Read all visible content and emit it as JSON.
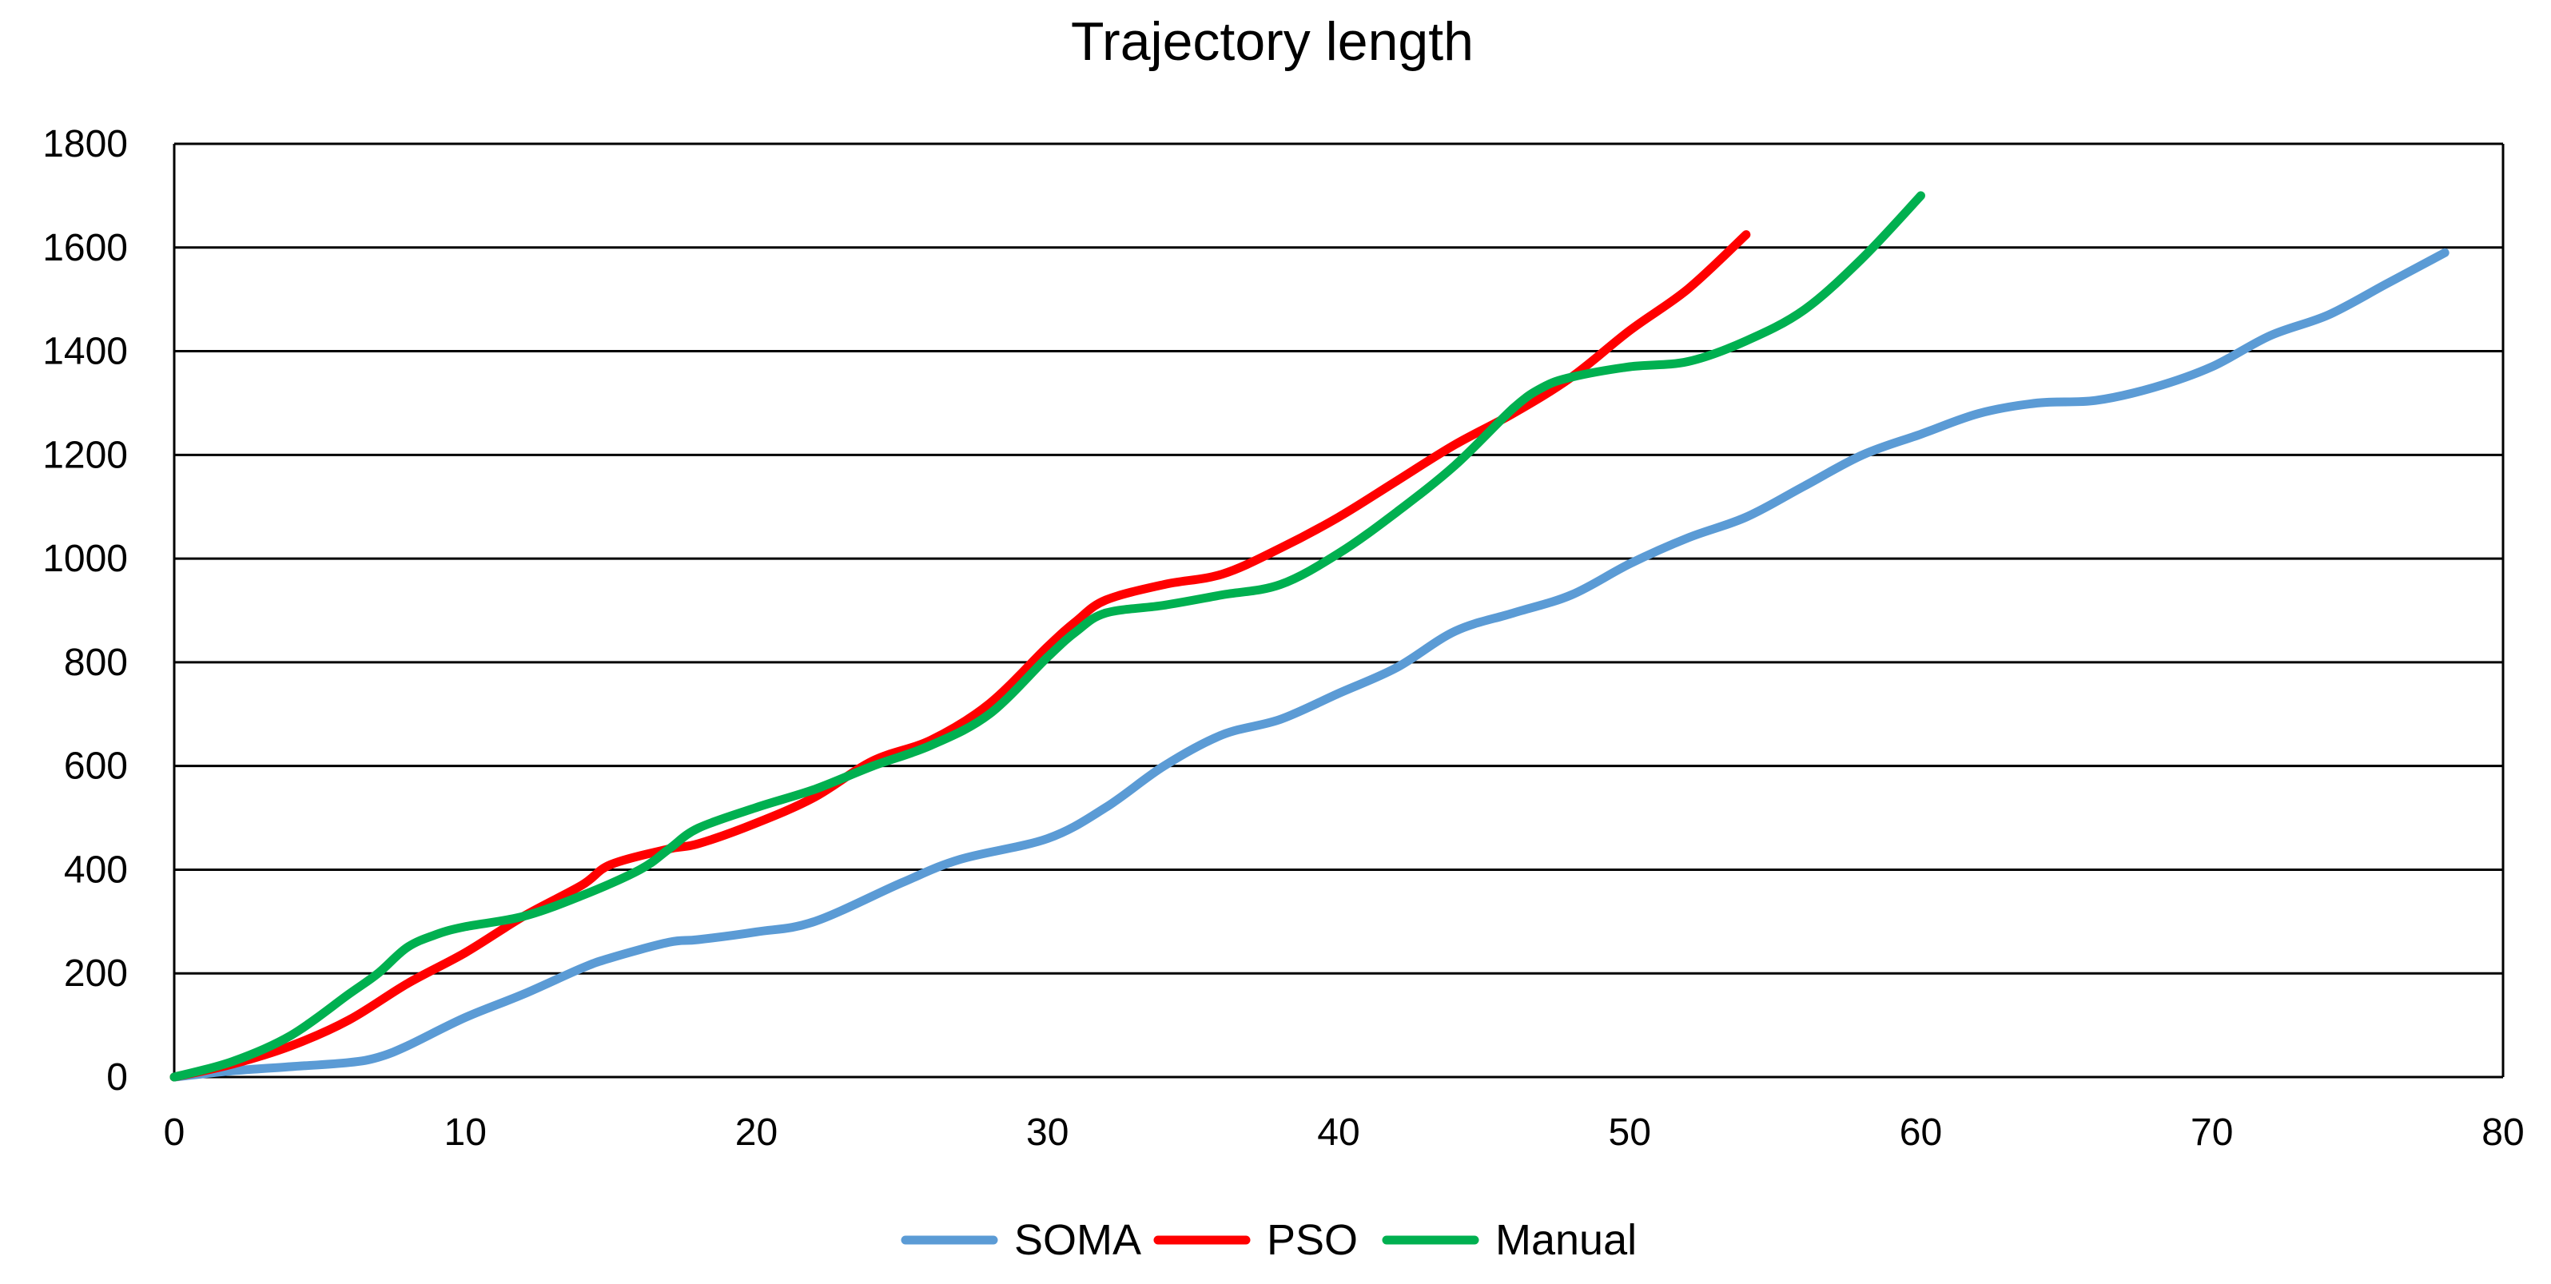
{
  "chart_data": {
    "type": "line",
    "title": "Trajectory length",
    "xlabel": "",
    "ylabel": "",
    "xlim": [
      0,
      80
    ],
    "ylim": [
      0,
      1800
    ],
    "x_ticks": [
      0,
      10,
      20,
      30,
      40,
      50,
      60,
      70,
      80
    ],
    "y_ticks": [
      0,
      200,
      400,
      600,
      800,
      1000,
      1200,
      1400,
      1600,
      1800
    ],
    "grid": "horizontal",
    "legend_position": "bottom-center",
    "series": [
      {
        "name": "SOMA",
        "color": "#5B9BD5",
        "x": [
          0,
          2,
          4,
          6,
          7,
          8,
          10,
          12,
          14,
          15,
          17,
          18,
          20,
          22,
          25,
          27,
          30,
          32,
          34,
          36,
          38,
          40,
          42,
          44,
          46,
          48,
          50,
          52,
          54,
          56,
          58,
          60,
          62,
          64,
          66,
          68,
          70,
          72,
          74,
          76,
          78
        ],
        "y": [
          0,
          12,
          20,
          28,
          38,
          60,
          115,
          160,
          210,
          230,
          260,
          265,
          280,
          300,
          375,
          420,
          460,
          520,
          600,
          660,
          690,
          740,
          790,
          860,
          895,
          930,
          990,
          1040,
          1080,
          1140,
          1200,
          1240,
          1280,
          1300,
          1305,
          1330,
          1370,
          1430,
          1470,
          1530,
          1590
        ]
      },
      {
        "name": "PSO",
        "color": "#FF0000",
        "x": [
          0,
          2,
          4,
          6,
          8,
          10,
          12,
          14,
          15,
          17,
          18,
          20,
          22,
          24,
          26,
          28,
          30,
          31,
          32,
          34,
          36,
          38,
          40,
          42,
          44,
          46,
          48,
          50,
          52,
          54
        ],
        "y": [
          0,
          25,
          60,
          110,
          180,
          240,
          310,
          370,
          410,
          440,
          450,
          490,
          540,
          610,
          650,
          720,
          830,
          880,
          920,
          950,
          970,
          1020,
          1080,
          1150,
          1220,
          1280,
          1350,
          1440,
          1520,
          1625
        ]
      },
      {
        "name": "Manual",
        "color": "#00B050",
        "x": [
          0,
          2,
          4,
          6,
          7,
          8,
          9,
          10,
          12,
          14,
          16,
          17,
          18,
          20,
          22,
          24,
          26,
          28,
          30,
          31,
          32,
          34,
          36,
          38,
          40,
          42,
          44,
          46,
          47,
          48,
          50,
          52,
          54,
          56,
          58,
          60
        ],
        "y": [
          0,
          30,
          80,
          160,
          200,
          250,
          275,
          290,
          310,
          350,
          400,
          440,
          480,
          520,
          555,
          600,
          640,
          700,
          810,
          860,
          895,
          910,
          930,
          950,
          1010,
          1090,
          1180,
          1290,
          1330,
          1350,
          1370,
          1380,
          1420,
          1480,
          1580,
          1700
        ]
      }
    ]
  }
}
